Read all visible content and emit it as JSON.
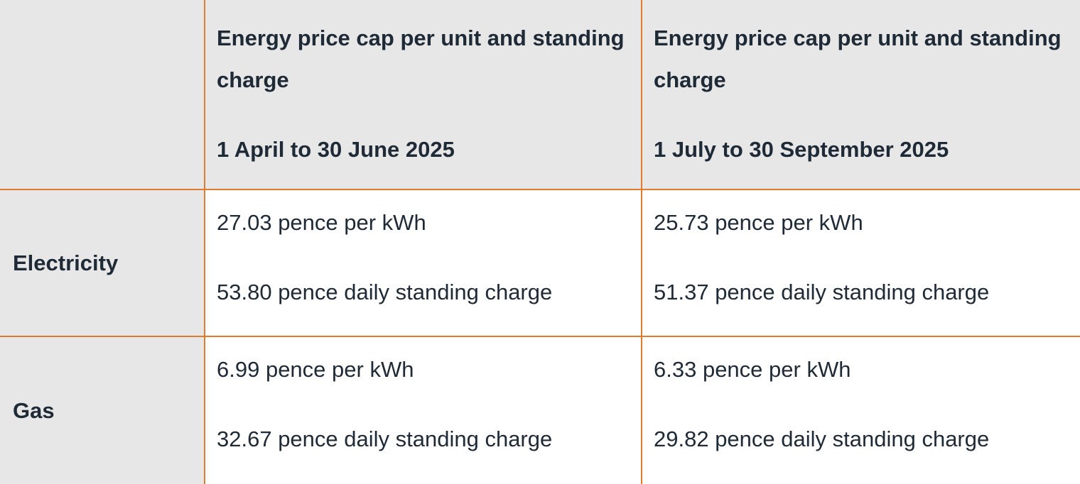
{
  "table": {
    "header": {
      "corner": "",
      "periods": [
        {
          "title": "Energy price cap per unit and standing charge",
          "period": "1 April to 30 June 2025"
        },
        {
          "title": "Energy price cap per unit and standing charge",
          "period": "1 July to 30 September 2025"
        }
      ]
    },
    "rows": [
      {
        "label": "Electricity",
        "cells": [
          {
            "unit_rate": "27.03 pence per kWh",
            "standing_charge": "53.80 pence daily standing charge"
          },
          {
            "unit_rate": "25.73 pence per kWh",
            "standing_charge": "51.37 pence daily standing charge"
          }
        ]
      },
      {
        "label": "Gas",
        "cells": [
          {
            "unit_rate": "6.99 pence per kWh",
            "standing_charge": "32.67 pence daily standing charge"
          },
          {
            "unit_rate": "6.33 pence per kWh",
            "standing_charge": "29.82 pence daily standing charge"
          }
        ]
      }
    ],
    "colors": {
      "header_background": "#e7e7e7",
      "border": "#e07a2c",
      "text": "#1f2a37"
    }
  }
}
